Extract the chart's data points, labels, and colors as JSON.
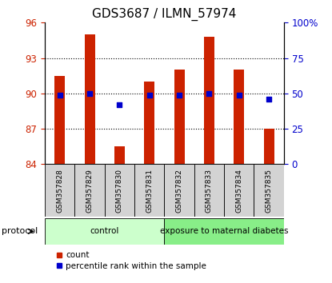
{
  "title": "GDS3687 / ILMN_57974",
  "samples": [
    "GSM357828",
    "GSM357829",
    "GSM357830",
    "GSM357831",
    "GSM357832",
    "GSM357833",
    "GSM357834",
    "GSM357835"
  ],
  "counts": [
    91.5,
    95.0,
    85.5,
    91.0,
    92.0,
    94.8,
    92.0,
    87.0
  ],
  "percentiles": [
    49,
    50,
    42,
    49,
    49,
    50,
    49,
    46
  ],
  "ylim_left": [
    84,
    96
  ],
  "ylim_right": [
    0,
    100
  ],
  "yticks_left": [
    84,
    87,
    90,
    93,
    96
  ],
  "yticks_right": [
    0,
    25,
    50,
    75,
    100
  ],
  "ytick_labels_right": [
    "0",
    "25",
    "50",
    "75",
    "100%"
  ],
  "bar_color": "#cc2200",
  "dot_color": "#0000cc",
  "groups": [
    {
      "label": "control",
      "start": 0,
      "end": 4,
      "color": "#ccffcc"
    },
    {
      "label": "exposure to maternal diabetes",
      "start": 4,
      "end": 8,
      "color": "#88ee88"
    }
  ],
  "protocol_label": "protocol",
  "legend_count_label": "count",
  "legend_percentile_label": "percentile rank within the sample",
  "bar_width": 0.35,
  "figsize": [
    4.15,
    3.54
  ],
  "dpi": 100
}
